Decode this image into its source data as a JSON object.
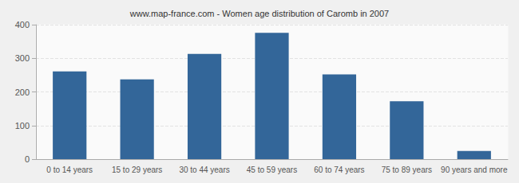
{
  "chart_data": {
    "type": "bar",
    "title": "www.map-france.com - Women age distribution of Caromb in 2007",
    "categories": [
      "0 to 14 years",
      "15 to 29 years",
      "30 to 44 years",
      "45 to 59 years",
      "60 to 74 years",
      "75 to 89 years",
      "90 years and more"
    ],
    "values": [
      261,
      237,
      313,
      376,
      252,
      172,
      24
    ],
    "color": "#336699",
    "ylim": [
      0,
      400
    ],
    "yticks": [
      0,
      100,
      200,
      300,
      400
    ],
    "grid": true
  }
}
